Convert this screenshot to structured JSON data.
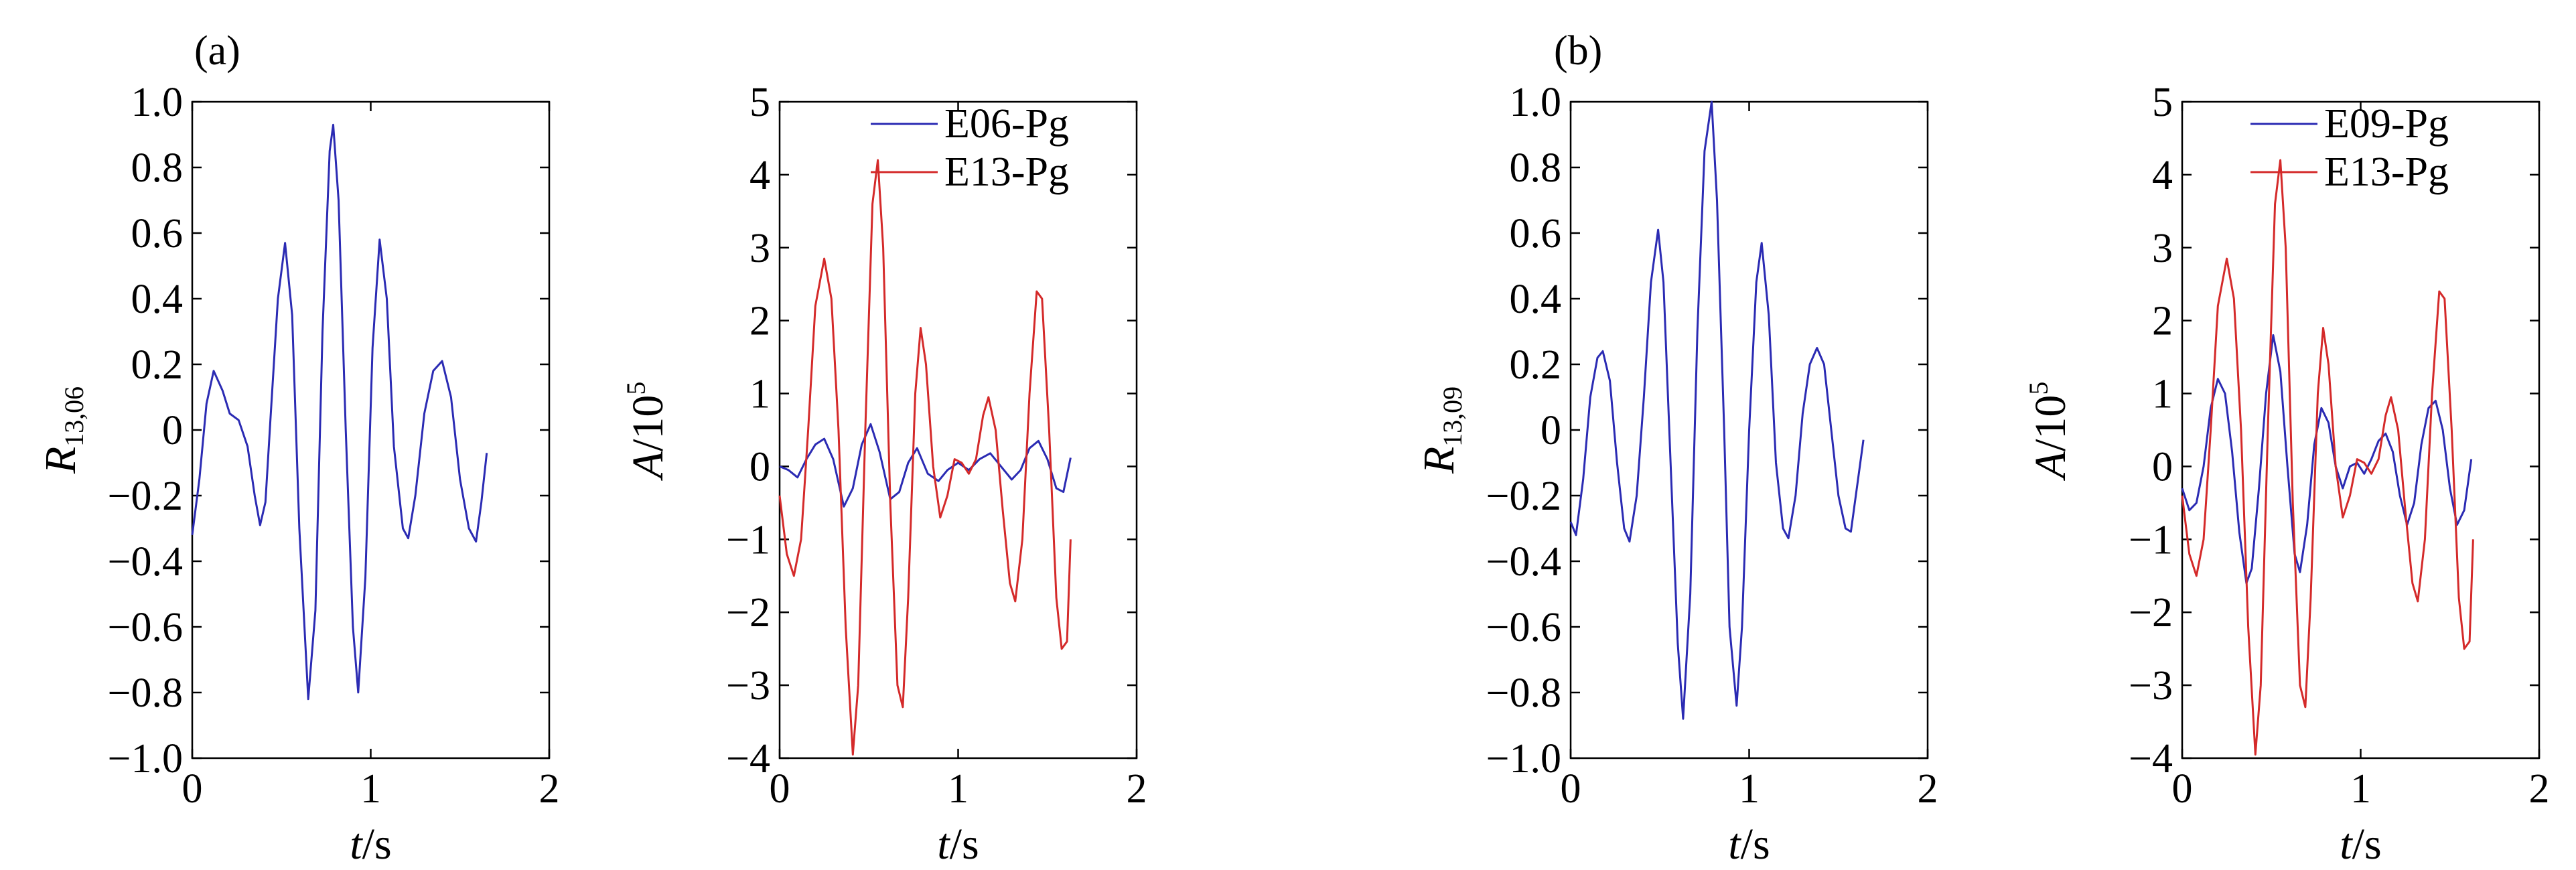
{
  "panel_labels": [
    "(a)",
    "(b)"
  ],
  "chart_data": [
    {
      "type": "line",
      "panel": "(a)",
      "ylabel_main": "R",
      "ylabel_sub": "13,06",
      "xlabel_main": "t",
      "xlabel_unit": "/s",
      "xlim": [
        0,
        2
      ],
      "ylim": [
        -1.0,
        1.0
      ],
      "xticks": [
        "0",
        "1",
        "2"
      ],
      "yticks": [
        "−1.0",
        "−0.8",
        "−0.6",
        "−0.4",
        "−0.2",
        "0",
        "0.2",
        "0.4",
        "0.6",
        "0.8",
        "1.0"
      ],
      "series": [
        {
          "name": "R13,06",
          "color": "#2b2bb3",
          "points": [
            [
              0,
              -0.32
            ],
            [
              0.04,
              -0.15
            ],
            [
              0.08,
              0.08
            ],
            [
              0.12,
              0.18
            ],
            [
              0.17,
              0.12
            ],
            [
              0.21,
              0.05
            ],
            [
              0.26,
              0.03
            ],
            [
              0.31,
              -0.05
            ],
            [
              0.35,
              -0.2
            ],
            [
              0.38,
              -0.29
            ],
            [
              0.41,
              -0.22
            ],
            [
              0.44,
              0.05
            ],
            [
              0.48,
              0.4
            ],
            [
              0.52,
              0.57
            ],
            [
              0.56,
              0.35
            ],
            [
              0.6,
              -0.3
            ],
            [
              0.65,
              -0.82
            ],
            [
              0.69,
              -0.55
            ],
            [
              0.73,
              0.3
            ],
            [
              0.77,
              0.85
            ],
            [
              0.79,
              0.93
            ],
            [
              0.82,
              0.7
            ],
            [
              0.86,
              0.0
            ],
            [
              0.9,
              -0.6
            ],
            [
              0.93,
              -0.8
            ],
            [
              0.97,
              -0.45
            ],
            [
              1.01,
              0.25
            ],
            [
              1.05,
              0.58
            ],
            [
              1.09,
              0.4
            ],
            [
              1.13,
              -0.05
            ],
            [
              1.18,
              -0.3
            ],
            [
              1.21,
              -0.33
            ],
            [
              1.25,
              -0.2
            ],
            [
              1.3,
              0.05
            ],
            [
              1.35,
              0.18
            ],
            [
              1.4,
              0.21
            ],
            [
              1.45,
              0.1
            ],
            [
              1.5,
              -0.15
            ],
            [
              1.55,
              -0.3
            ],
            [
              1.59,
              -0.34
            ],
            [
              1.62,
              -0.22
            ],
            [
              1.65,
              -0.07
            ]
          ]
        }
      ]
    },
    {
      "type": "line",
      "panel": "(a)",
      "ylabel_main": "A",
      "ylabel_unit": "/10",
      "ylabel_exp": "5",
      "xlabel_main": "t",
      "xlabel_unit": "/s",
      "xlim": [
        0,
        2
      ],
      "ylim": [
        -4,
        5
      ],
      "xticks": [
        "0",
        "1",
        "2"
      ],
      "yticks": [
        "−4",
        "−3",
        "−2",
        "−1",
        "0",
        "1",
        "2",
        "3",
        "4",
        "5"
      ],
      "legend": [
        "E06-Pg",
        "E13-Pg"
      ],
      "series": [
        {
          "name": "E06-Pg",
          "color": "#2b2bb3",
          "points": [
            [
              0,
              0.0
            ],
            [
              0.05,
              -0.05
            ],
            [
              0.1,
              -0.15
            ],
            [
              0.15,
              0.1
            ],
            [
              0.2,
              0.3
            ],
            [
              0.25,
              0.38
            ],
            [
              0.3,
              0.1
            ],
            [
              0.36,
              -0.55
            ],
            [
              0.41,
              -0.3
            ],
            [
              0.46,
              0.3
            ],
            [
              0.51,
              0.58
            ],
            [
              0.56,
              0.2
            ],
            [
              0.62,
              -0.45
            ],
            [
              0.67,
              -0.35
            ],
            [
              0.72,
              0.05
            ],
            [
              0.77,
              0.25
            ],
            [
              0.83,
              -0.1
            ],
            [
              0.89,
              -0.2
            ],
            [
              0.94,
              -0.05
            ],
            [
              1.0,
              0.05
            ],
            [
              1.06,
              -0.05
            ],
            [
              1.12,
              0.1
            ],
            [
              1.18,
              0.18
            ],
            [
              1.24,
              0.0
            ],
            [
              1.3,
              -0.18
            ],
            [
              1.35,
              -0.05
            ],
            [
              1.4,
              0.25
            ],
            [
              1.45,
              0.35
            ],
            [
              1.5,
              0.1
            ],
            [
              1.55,
              -0.3
            ],
            [
              1.59,
              -0.35
            ],
            [
              1.63,
              0.12
            ]
          ]
        },
        {
          "name": "E13-Pg",
          "color": "#d42a2a",
          "points": [
            [
              0,
              -0.4
            ],
            [
              0.04,
              -1.2
            ],
            [
              0.08,
              -1.5
            ],
            [
              0.12,
              -1.0
            ],
            [
              0.16,
              0.5
            ],
            [
              0.2,
              2.2
            ],
            [
              0.25,
              2.85
            ],
            [
              0.29,
              2.3
            ],
            [
              0.33,
              0.5
            ],
            [
              0.37,
              -2.2
            ],
            [
              0.41,
              -3.95
            ],
            [
              0.44,
              -3.0
            ],
            [
              0.48,
              0.5
            ],
            [
              0.52,
              3.6
            ],
            [
              0.55,
              4.2
            ],
            [
              0.58,
              3.0
            ],
            [
              0.62,
              -0.5
            ],
            [
              0.66,
              -3.0
            ],
            [
              0.69,
              -3.3
            ],
            [
              0.72,
              -1.8
            ],
            [
              0.76,
              1.0
            ],
            [
              0.79,
              1.9
            ],
            [
              0.82,
              1.4
            ],
            [
              0.86,
              0.0
            ],
            [
              0.9,
              -0.7
            ],
            [
              0.94,
              -0.4
            ],
            [
              0.98,
              0.1
            ],
            [
              1.02,
              0.05
            ],
            [
              1.06,
              -0.1
            ],
            [
              1.1,
              0.1
            ],
            [
              1.14,
              0.7
            ],
            [
              1.17,
              0.95
            ],
            [
              1.21,
              0.5
            ],
            [
              1.25,
              -0.6
            ],
            [
              1.29,
              -1.6
            ],
            [
              1.32,
              -1.85
            ],
            [
              1.36,
              -1.0
            ],
            [
              1.4,
              1.0
            ],
            [
              1.44,
              2.4
            ],
            [
              1.47,
              2.3
            ],
            [
              1.51,
              0.5
            ],
            [
              1.55,
              -1.8
            ],
            [
              1.58,
              -2.5
            ],
            [
              1.61,
              -2.4
            ],
            [
              1.63,
              -1.0
            ]
          ]
        }
      ]
    },
    {
      "type": "line",
      "panel": "(b)",
      "ylabel_main": "R",
      "ylabel_sub": "13,09",
      "xlabel_main": "t",
      "xlabel_unit": "/s",
      "xlim": [
        0,
        2
      ],
      "ylim": [
        -1.0,
        1.0
      ],
      "xticks": [
        "0",
        "1",
        "2"
      ],
      "yticks": [
        "−1.0",
        "−0.8",
        "−0.6",
        "−0.4",
        "−0.2",
        "0",
        "0.2",
        "0.4",
        "0.6",
        "0.8",
        "1.0"
      ],
      "series": [
        {
          "name": "R13,09",
          "color": "#2b2bb3",
          "points": [
            [
              0,
              -0.28
            ],
            [
              0.03,
              -0.32
            ],
            [
              0.07,
              -0.15
            ],
            [
              0.11,
              0.1
            ],
            [
              0.15,
              0.22
            ],
            [
              0.18,
              0.24
            ],
            [
              0.22,
              0.15
            ],
            [
              0.26,
              -0.1
            ],
            [
              0.3,
              -0.3
            ],
            [
              0.33,
              -0.34
            ],
            [
              0.37,
              -0.2
            ],
            [
              0.41,
              0.1
            ],
            [
              0.45,
              0.45
            ],
            [
              0.49,
              0.61
            ],
            [
              0.52,
              0.45
            ],
            [
              0.56,
              -0.1
            ],
            [
              0.6,
              -0.65
            ],
            [
              0.63,
              -0.88
            ],
            [
              0.67,
              -0.5
            ],
            [
              0.71,
              0.3
            ],
            [
              0.75,
              0.85
            ],
            [
              0.79,
              1.0
            ],
            [
              0.82,
              0.7
            ],
            [
              0.86,
              0.0
            ],
            [
              0.89,
              -0.6
            ],
            [
              0.93,
              -0.84
            ],
            [
              0.96,
              -0.6
            ],
            [
              1.0,
              0.0
            ],
            [
              1.04,
              0.45
            ],
            [
              1.07,
              0.57
            ],
            [
              1.11,
              0.35
            ],
            [
              1.15,
              -0.1
            ],
            [
              1.19,
              -0.3
            ],
            [
              1.22,
              -0.33
            ],
            [
              1.26,
              -0.2
            ],
            [
              1.3,
              0.05
            ],
            [
              1.34,
              0.2
            ],
            [
              1.38,
              0.25
            ],
            [
              1.42,
              0.2
            ],
            [
              1.46,
              0.0
            ],
            [
              1.5,
              -0.2
            ],
            [
              1.54,
              -0.3
            ],
            [
              1.57,
              -0.31
            ],
            [
              1.61,
              -0.15
            ],
            [
              1.64,
              -0.03
            ]
          ]
        }
      ]
    },
    {
      "type": "line",
      "panel": "(b)",
      "ylabel_main": "A",
      "ylabel_unit": "/10",
      "ylabel_exp": "5",
      "xlabel_main": "t",
      "xlabel_unit": "/s",
      "xlim": [
        0,
        2
      ],
      "ylim": [
        -4,
        5
      ],
      "xticks": [
        "0",
        "1",
        "2"
      ],
      "yticks": [
        "−4",
        "−3",
        "−2",
        "−1",
        "0",
        "1",
        "2",
        "3",
        "4",
        "5"
      ],
      "legend": [
        "E09-Pg",
        "E13-Pg"
      ],
      "series": [
        {
          "name": "E09-Pg",
          "color": "#2b2bb3",
          "points": [
            [
              0,
              -0.3
            ],
            [
              0.04,
              -0.6
            ],
            [
              0.08,
              -0.5
            ],
            [
              0.12,
              0.0
            ],
            [
              0.16,
              0.8
            ],
            [
              0.2,
              1.2
            ],
            [
              0.24,
              1.0
            ],
            [
              0.28,
              0.2
            ],
            [
              0.32,
              -0.9
            ],
            [
              0.36,
              -1.6
            ],
            [
              0.39,
              -1.4
            ],
            [
              0.43,
              -0.3
            ],
            [
              0.47,
              1.0
            ],
            [
              0.51,
              1.8
            ],
            [
              0.55,
              1.3
            ],
            [
              0.59,
              0.0
            ],
            [
              0.63,
              -1.2
            ],
            [
              0.66,
              -1.45
            ],
            [
              0.7,
              -0.8
            ],
            [
              0.74,
              0.3
            ],
            [
              0.78,
              0.8
            ],
            [
              0.82,
              0.6
            ],
            [
              0.86,
              0.0
            ],
            [
              0.9,
              -0.3
            ],
            [
              0.94,
              0.0
            ],
            [
              0.98,
              0.05
            ],
            [
              1.02,
              -0.1
            ],
            [
              1.06,
              0.1
            ],
            [
              1.1,
              0.35
            ],
            [
              1.14,
              0.45
            ],
            [
              1.18,
              0.2
            ],
            [
              1.22,
              -0.4
            ],
            [
              1.26,
              -0.8
            ],
            [
              1.3,
              -0.5
            ],
            [
              1.34,
              0.3
            ],
            [
              1.38,
              0.8
            ],
            [
              1.42,
              0.9
            ],
            [
              1.46,
              0.5
            ],
            [
              1.5,
              -0.3
            ],
            [
              1.54,
              -0.8
            ],
            [
              1.58,
              -0.6
            ],
            [
              1.62,
              0.1
            ]
          ]
        },
        {
          "name": "E13-Pg",
          "color": "#d42a2a",
          "points": [
            [
              0,
              -0.4
            ],
            [
              0.04,
              -1.2
            ],
            [
              0.08,
              -1.5
            ],
            [
              0.12,
              -1.0
            ],
            [
              0.16,
              0.5
            ],
            [
              0.2,
              2.2
            ],
            [
              0.25,
              2.85
            ],
            [
              0.29,
              2.3
            ],
            [
              0.33,
              0.5
            ],
            [
              0.37,
              -2.2
            ],
            [
              0.41,
              -3.95
            ],
            [
              0.44,
              -3.0
            ],
            [
              0.48,
              0.5
            ],
            [
              0.52,
              3.6
            ],
            [
              0.55,
              4.2
            ],
            [
              0.58,
              3.0
            ],
            [
              0.62,
              -0.5
            ],
            [
              0.66,
              -3.0
            ],
            [
              0.69,
              -3.3
            ],
            [
              0.72,
              -1.8
            ],
            [
              0.76,
              1.0
            ],
            [
              0.79,
              1.9
            ],
            [
              0.82,
              1.4
            ],
            [
              0.86,
              0.0
            ],
            [
              0.9,
              -0.7
            ],
            [
              0.94,
              -0.4
            ],
            [
              0.98,
              0.1
            ],
            [
              1.02,
              0.05
            ],
            [
              1.06,
              -0.1
            ],
            [
              1.1,
              0.1
            ],
            [
              1.14,
              0.7
            ],
            [
              1.17,
              0.95
            ],
            [
              1.21,
              0.5
            ],
            [
              1.25,
              -0.6
            ],
            [
              1.29,
              -1.6
            ],
            [
              1.32,
              -1.85
            ],
            [
              1.36,
              -1.0
            ],
            [
              1.4,
              1.0
            ],
            [
              1.44,
              2.4
            ],
            [
              1.47,
              2.3
            ],
            [
              1.51,
              0.5
            ],
            [
              1.55,
              -1.8
            ],
            [
              1.58,
              -2.5
            ],
            [
              1.61,
              -2.4
            ],
            [
              1.63,
              -1.0
            ]
          ]
        }
      ]
    }
  ]
}
